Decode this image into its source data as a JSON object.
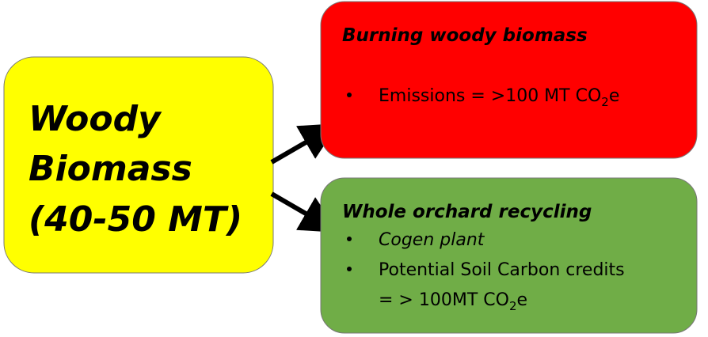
{
  "source": {
    "lines": [
      "Woody",
      "Biomass",
      "(40-50 MT)"
    ]
  },
  "outcomes": [
    {
      "title": "Burning woody biomass",
      "lines": [
        {
          "text": "Emissions = >100 MT CO",
          "sub": "2",
          "tail": "e"
        }
      ]
    },
    {
      "title": "Whole orchard recycling",
      "lines": [
        {
          "text": "Cogen plant"
        },
        {
          "text": "Potential Soil Carbon credits"
        },
        {
          "text": "= > 100MT CO",
          "sub": "2",
          "tail": "e"
        }
      ]
    }
  ]
}
